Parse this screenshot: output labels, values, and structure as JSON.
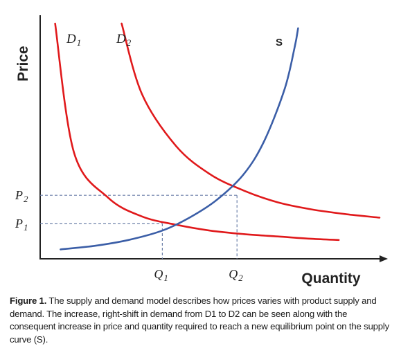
{
  "chart_data": {
    "type": "line",
    "xlabel": "Quantity",
    "ylabel": "Price",
    "series": [
      {
        "name": "D1",
        "color": "#e0191b",
        "points": [
          [
            0.22,
            10.0
          ],
          [
            0.5,
            4.5
          ],
          [
            1.0,
            2.6
          ],
          [
            1.5,
            1.8
          ],
          [
            2.0,
            1.45
          ],
          [
            2.5,
            1.2
          ],
          [
            3.0,
            1.05
          ],
          [
            3.5,
            0.95
          ],
          [
            4.0,
            0.85
          ],
          [
            4.4,
            0.8
          ]
        ]
      },
      {
        "name": "D2",
        "color": "#e0191b",
        "points": [
          [
            1.2,
            10.0
          ],
          [
            1.5,
            7.0
          ],
          [
            2.0,
            4.8
          ],
          [
            2.5,
            3.6
          ],
          [
            3.0,
            2.9
          ],
          [
            3.5,
            2.4
          ],
          [
            4.0,
            2.1
          ],
          [
            4.5,
            1.9
          ],
          [
            5.0,
            1.75
          ]
        ]
      },
      {
        "name": "S",
        "color": "#3b5ea7",
        "points": [
          [
            0.3,
            0.4
          ],
          [
            0.8,
            0.55
          ],
          [
            1.3,
            0.8
          ],
          [
            1.8,
            1.2
          ],
          [
            2.2,
            1.75
          ],
          [
            2.6,
            2.5
          ],
          [
            3.0,
            3.6
          ],
          [
            3.3,
            5.0
          ],
          [
            3.6,
            7.2
          ],
          [
            3.75,
            9.0
          ],
          [
            3.8,
            9.8
          ]
        ]
      }
    ],
    "equilibria": [
      {
        "x_label": "Q",
        "x_sub": "1",
        "y_label": "P",
        "y_sub": "1",
        "x": 1.8,
        "y": 1.5
      },
      {
        "x_label": "Q",
        "x_sub": "2",
        "y_label": "P",
        "y_sub": "2",
        "x": 2.9,
        "y": 2.7
      }
    ],
    "curve_labels": [
      {
        "base": "D",
        "sub": "1",
        "series": "D1"
      },
      {
        "base": "D",
        "sub": "2",
        "series": "D2"
      },
      {
        "base": "S",
        "sub": "",
        "series": "S"
      }
    ],
    "dashed_guides": true,
    "grid": false,
    "legend": "none",
    "axis_color": "#222222",
    "guide_color": "#6b7fa8"
  },
  "caption": {
    "label": "Figure 1.",
    "text": " The supply and demand model describes how prices varies with product supply and demand. The increase, right-shift in demand from D1 to D2 can be seen along with the consequent increase in price and quantity required to reach a new equilibrium point on the supply curve (S)."
  }
}
